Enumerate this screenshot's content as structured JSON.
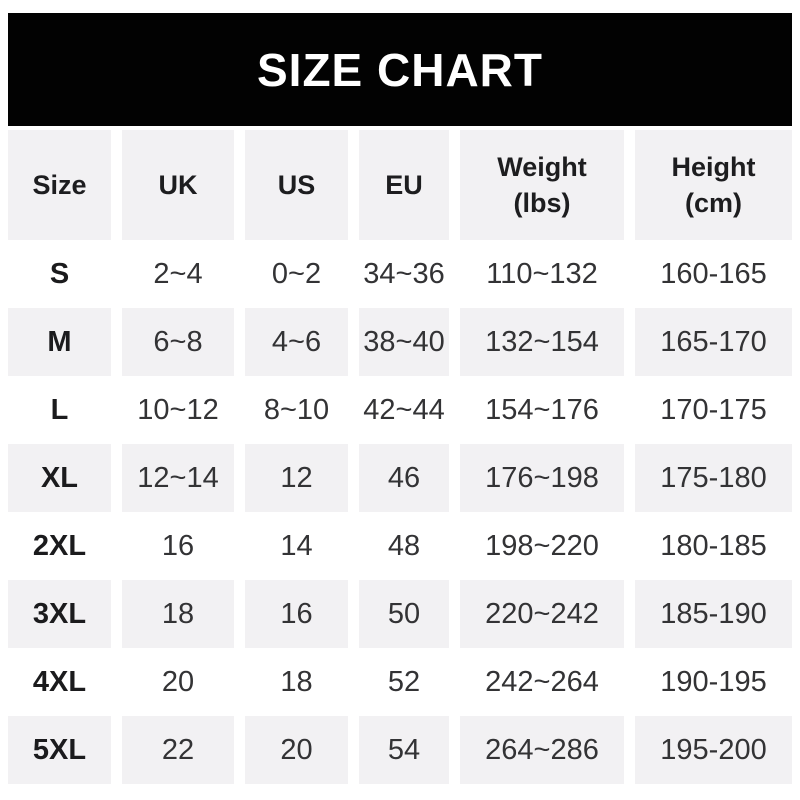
{
  "banner": {
    "title": "SIZE CHART"
  },
  "colors": {
    "banner_bg": "#000000",
    "banner_text": "#ffffff",
    "row_bg": "#ffffff",
    "row_alt_bg": "#f2f1f3",
    "body_text": "#333335",
    "emphasis_text": "#1b1b1d"
  },
  "header": {
    "cols": [
      {
        "l1": "Size",
        "l2": ""
      },
      {
        "l1": "UK",
        "l2": ""
      },
      {
        "l1": "US",
        "l2": ""
      },
      {
        "l1": "EU",
        "l2": ""
      },
      {
        "l1": "Weight",
        "l2": "(lbs)"
      },
      {
        "l1": "Height",
        "l2": "(cm)"
      }
    ]
  },
  "chart_data": {
    "type": "table",
    "title": "SIZE CHART",
    "columns": [
      "Size",
      "UK",
      "US",
      "EU",
      "Weight (lbs)",
      "Height (cm)"
    ],
    "rows": [
      [
        "S",
        "2~4",
        "0~2",
        "34~36",
        "110~132",
        "160-165"
      ],
      [
        "M",
        "6~8",
        "4~6",
        "38~40",
        "132~154",
        "165-170"
      ],
      [
        "L",
        "10~12",
        "8~10",
        "42~44",
        "154~176",
        "170-175"
      ],
      [
        "XL",
        "12~14",
        "12",
        "46",
        "176~198",
        "175-180"
      ],
      [
        "2XL",
        "16",
        "14",
        "48",
        "198~220",
        "180-185"
      ],
      [
        "3XL",
        "18",
        "16",
        "50",
        "220~242",
        "185-190"
      ],
      [
        "4XL",
        "20",
        "18",
        "52",
        "242~264",
        "190-195"
      ],
      [
        "5XL",
        "22",
        "20",
        "54",
        "264~286",
        "195-200"
      ]
    ],
    "layout": {
      "row_striping": "alternating white and light gray starting white at row S",
      "range_separator_body": "~",
      "range_separator_height": "-"
    }
  }
}
